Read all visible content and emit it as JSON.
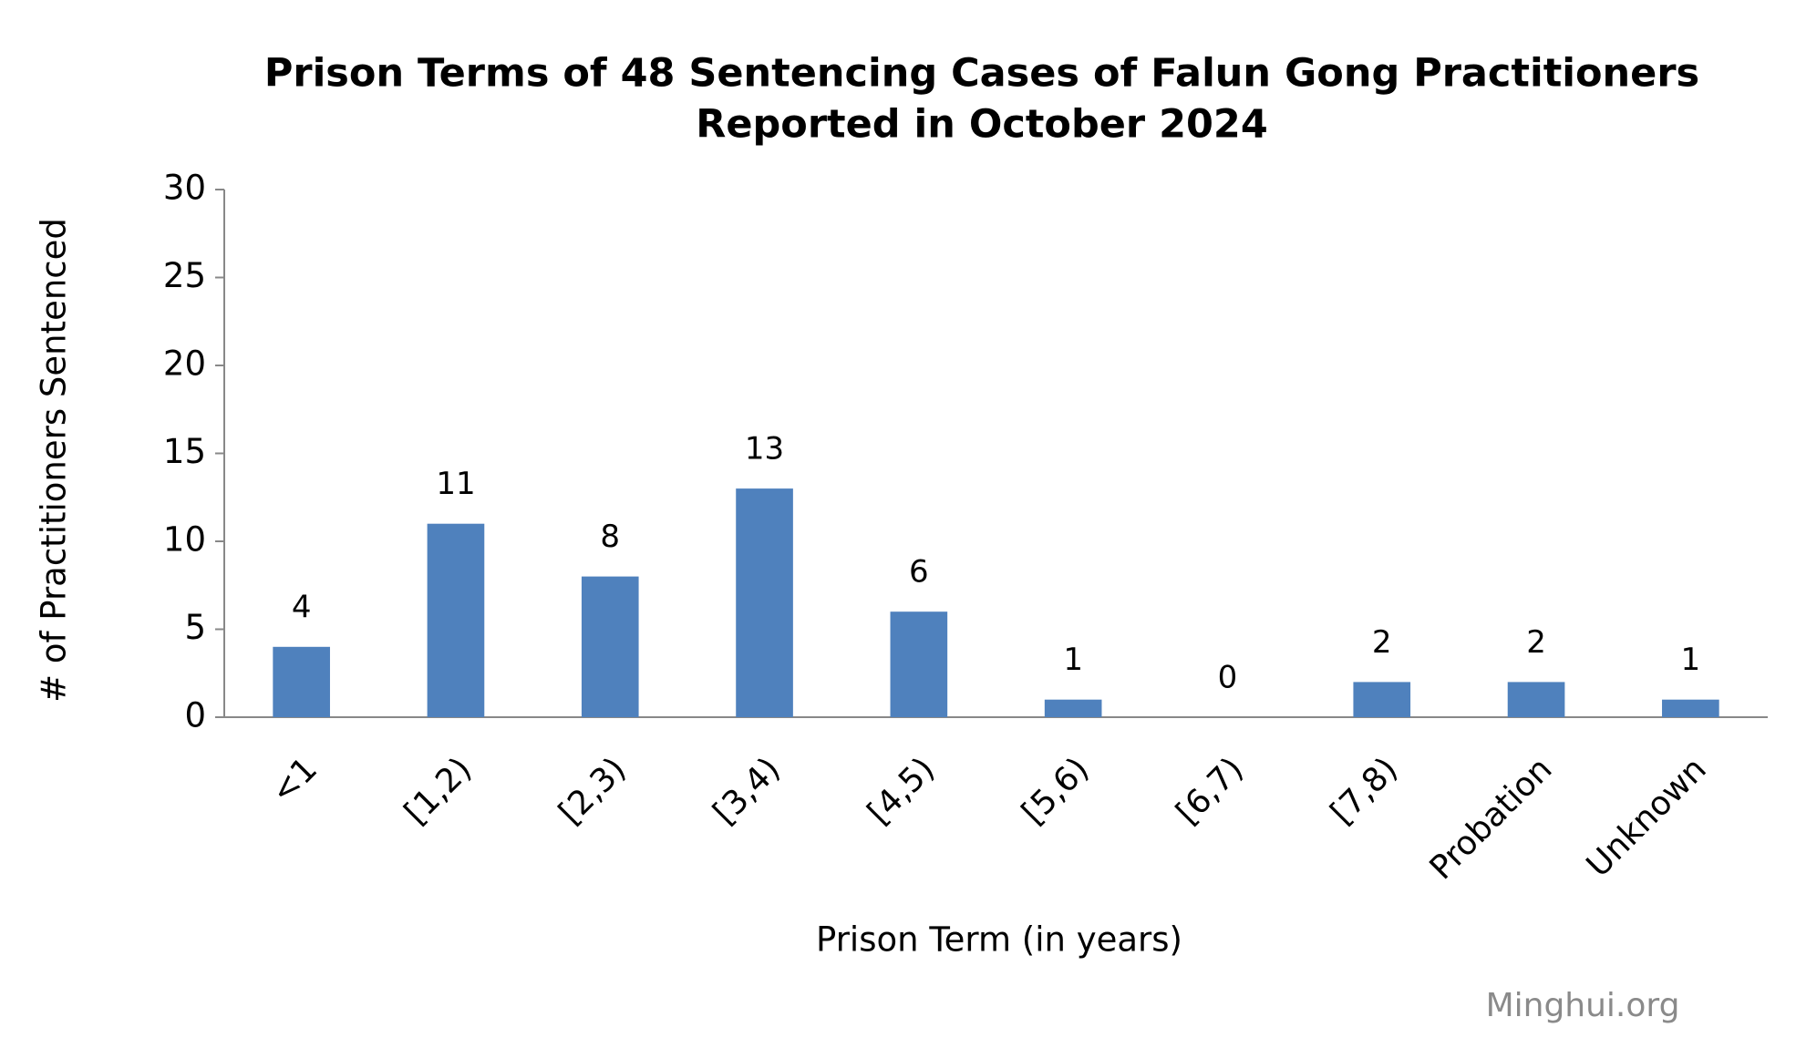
{
  "chart_data": {
    "type": "bar",
    "title": [
      "Prison Terms of 48 Sentencing Cases of Falun Gong Practitioners",
      "Reported in October 2024"
    ],
    "x_label": "Prison Term (in years)",
    "y_label": "# of Practitioners Sentenced",
    "source": "Minghui.org",
    "categories": [
      "<1",
      "[1,2)",
      "[2,3)",
      "[3,4)",
      "[4,5)",
      "[5,6)",
      "[6,7)",
      "[7,8)",
      "Probation",
      "Unknown"
    ],
    "values": [
      4,
      11,
      8,
      13,
      6,
      1,
      0,
      2,
      2,
      1
    ],
    "color": "#4f81bd",
    "ylim": [
      0,
      30
    ],
    "yticks": [
      0,
      5,
      10,
      15,
      20,
      25,
      30
    ],
    "grid": false
  }
}
